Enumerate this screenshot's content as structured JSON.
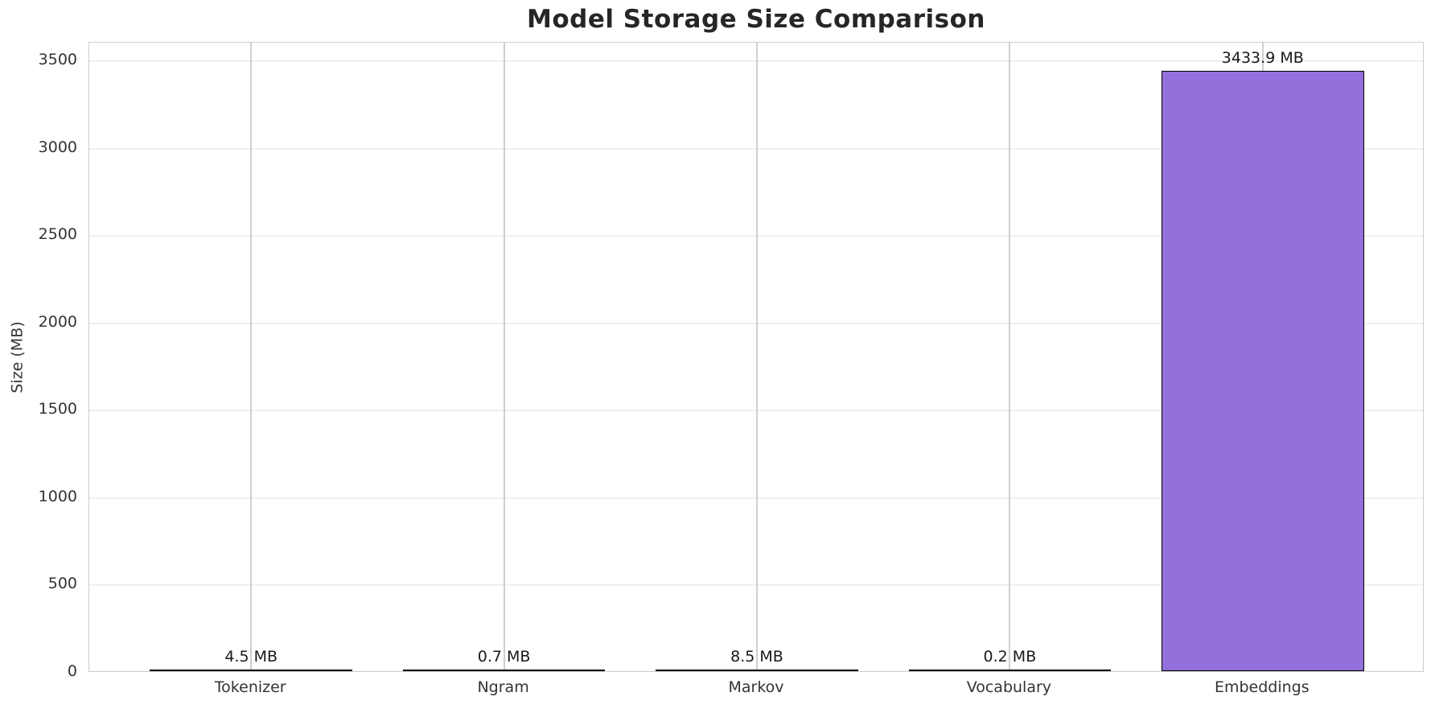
{
  "chart_data": {
    "type": "bar",
    "title": "Model Storage Size Comparison",
    "xlabel": "",
    "ylabel": "Size (MB)",
    "categories": [
      "Tokenizer",
      "Ngram",
      "Markov",
      "Vocabulary",
      "Embeddings"
    ],
    "values": [
      4.5,
      0.7,
      8.5,
      0.2,
      3433.9
    ],
    "bar_labels": [
      "4.5 MB",
      "0.7 MB",
      "8.5 MB",
      "0.2 MB",
      "3433.9 MB"
    ],
    "yticks": [
      0,
      500,
      1000,
      1500,
      2000,
      2500,
      3000,
      3500
    ],
    "ylim": [
      0,
      3606
    ],
    "xlim_units": [
      -0.64,
      4.64
    ],
    "bar_width_units": 0.8,
    "grid": true,
    "legend": null,
    "colors": {
      "bar_fill": "#9370db",
      "bar_edge": "#000000",
      "grid_horizontal": "#efefef",
      "grid_vertical": "#cfcfcf",
      "spine": "#cccccc",
      "title_text": "#262626",
      "tick_text": "#333333",
      "value_text": "#1a1a1a",
      "background": "#ffffff"
    }
  }
}
